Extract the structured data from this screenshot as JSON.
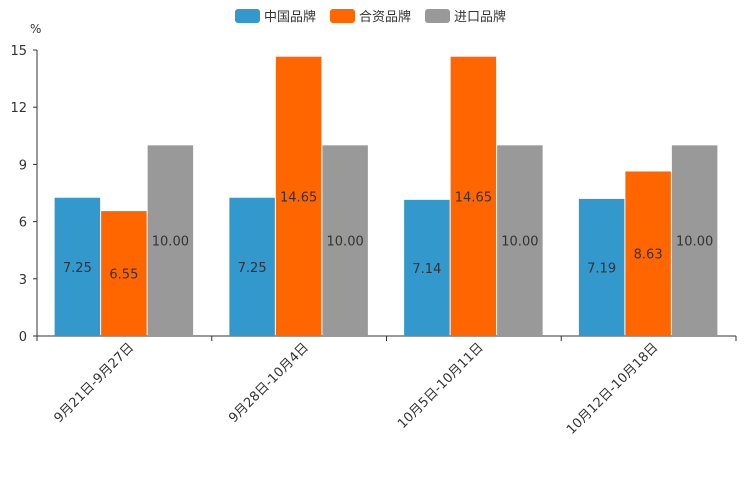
{
  "chart_data": {
    "type": "bar",
    "ylabel": "%",
    "ylim": [
      0,
      15
    ],
    "yticks": [
      0,
      3,
      6,
      9,
      12,
      15
    ],
    "categories": [
      "9月21日-9月27日",
      "9月28日-10月4日",
      "10月5日-10月11日",
      "10月12日-10月18日"
    ],
    "series": [
      {
        "name": "中国品牌",
        "color": "#3398CC",
        "values": [
          7.25,
          7.25,
          7.14,
          7.19
        ],
        "labels": [
          "7.25",
          "7.25",
          "7.14",
          "7.19"
        ]
      },
      {
        "name": "合资品牌",
        "color": "#FF6600",
        "values": [
          6.55,
          14.65,
          14.65,
          8.63
        ],
        "labels": [
          "6.55",
          "14.65",
          "14.65",
          "8.63"
        ]
      },
      {
        "name": "进口品牌",
        "color": "#999999",
        "values": [
          10.0,
          10.0,
          10.0,
          10.0
        ],
        "labels": [
          "10.00",
          "10.00",
          "10.00",
          "10.00"
        ]
      }
    ],
    "legend_position": "top-center",
    "grid": false
  }
}
